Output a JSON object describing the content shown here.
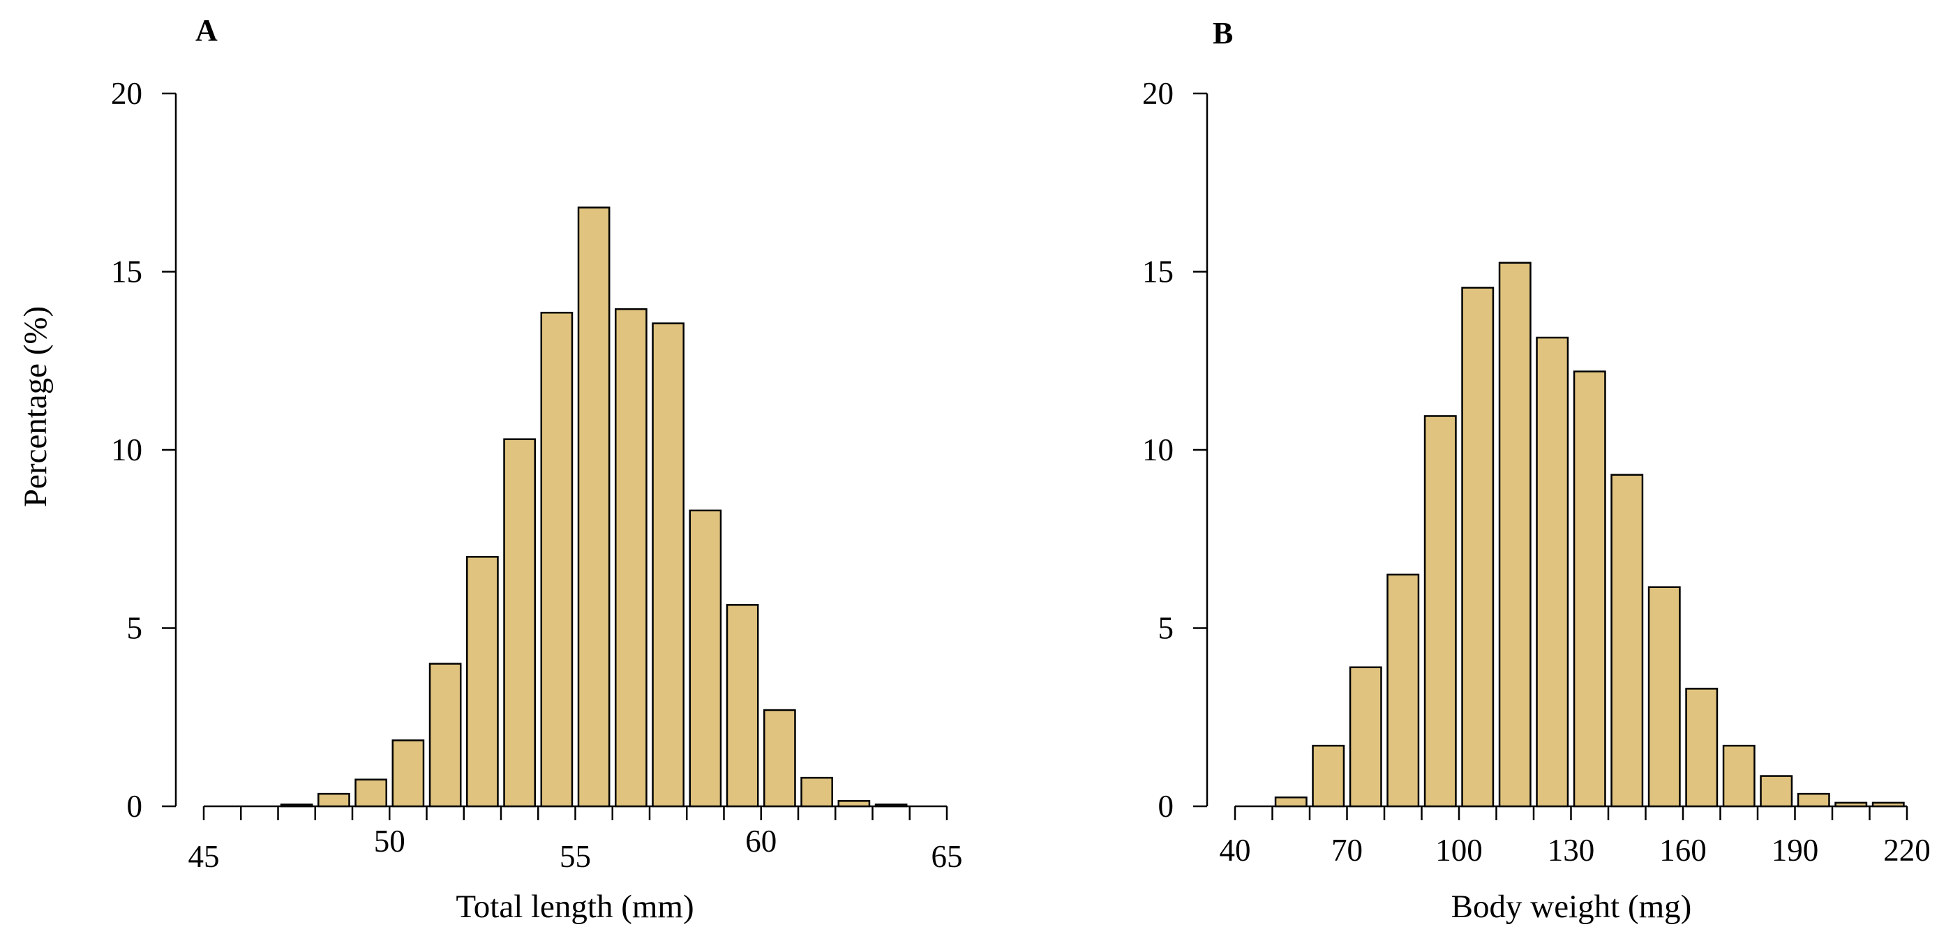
{
  "colors": {
    "bar_fill": "#E0C37E",
    "bar_stroke": "#000000"
  },
  "chart_data": [
    {
      "type": "bar",
      "panel_label": "A",
      "xlabel": "Total length (mm)",
      "ylabel": "Percentage (%)",
      "xlim": [
        45,
        65
      ],
      "ylim": [
        0,
        20
      ],
      "xticks": [
        45,
        50,
        55,
        60,
        65
      ],
      "yticks": [
        0,
        5,
        10,
        15,
        20
      ],
      "bin_width": 1,
      "bins": [
        [
          45,
          46,
          0
        ],
        [
          46,
          47,
          0
        ],
        [
          47,
          48,
          0.05
        ],
        [
          48,
          49,
          0.35
        ],
        [
          49,
          50,
          0.75
        ],
        [
          50,
          51,
          1.85
        ],
        [
          51,
          52,
          4.0
        ],
        [
          52,
          53,
          7.0
        ],
        [
          53,
          54,
          10.3
        ],
        [
          54,
          55,
          13.85
        ],
        [
          55,
          56,
          16.8
        ],
        [
          56,
          57,
          13.95
        ],
        [
          57,
          58,
          13.55
        ],
        [
          58,
          59,
          8.3
        ],
        [
          59,
          60,
          5.65
        ],
        [
          60,
          61,
          2.7
        ],
        [
          61,
          62,
          0.8
        ],
        [
          62,
          63,
          0.15
        ],
        [
          63,
          64,
          0.05
        ],
        [
          64,
          65,
          0
        ]
      ]
    },
    {
      "type": "bar",
      "panel_label": "B",
      "xlabel": "Body weight (mg)",
      "ylabel": "",
      "xlim": [
        40,
        220
      ],
      "ylim": [
        0,
        20
      ],
      "xticks": [
        40,
        70,
        100,
        130,
        160,
        190,
        220
      ],
      "yticks": [
        0,
        5,
        10,
        15,
        20
      ],
      "bin_width": 10,
      "bins": [
        [
          40,
          50,
          0
        ],
        [
          50,
          60,
          0.25
        ],
        [
          60,
          70,
          1.7
        ],
        [
          70,
          80,
          3.9
        ],
        [
          80,
          90,
          6.5
        ],
        [
          90,
          100,
          10.95
        ],
        [
          100,
          110,
          14.55
        ],
        [
          110,
          120,
          15.25
        ],
        [
          120,
          130,
          13.15
        ],
        [
          130,
          140,
          12.2
        ],
        [
          140,
          150,
          9.3
        ],
        [
          150,
          160,
          6.15
        ],
        [
          160,
          170,
          3.3
        ],
        [
          170,
          180,
          1.7
        ],
        [
          180,
          190,
          0.85
        ],
        [
          190,
          200,
          0.35
        ],
        [
          200,
          210,
          0.1
        ],
        [
          210,
          220,
          0.1
        ]
      ]
    }
  ]
}
